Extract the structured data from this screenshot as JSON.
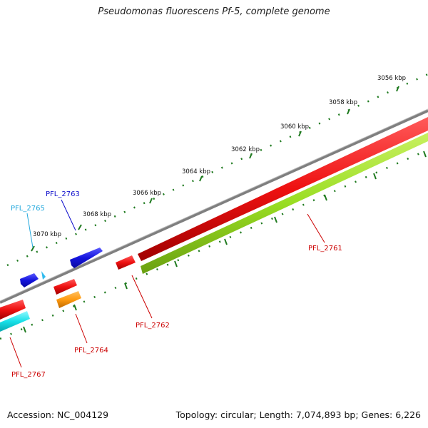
{
  "title": "Pseudomonas fluorescens Pf-5, complete genome",
  "accession": "Accession: NC_004129",
  "summary": "Topology: circular; Length: 7,074,893 bp; Genes: 6,226",
  "colors": {
    "backbone": "#7f7f7f",
    "forward_red": "#ee1111",
    "reverse_red": "#ee1111",
    "green_band": "#99dd22",
    "blue_gene": "#1414dd",
    "cyan_gene": "#18e0e8",
    "orange_gene": "#ff9a10",
    "label_red": "#cc0000",
    "label_blue": "#1010cc",
    "label_cyan": "#22a8dd",
    "tick_green": "#1f7a1f"
  },
  "ticks": [
    "3056 kbp",
    "3058 kbp",
    "3060 kbp",
    "3062 kbp",
    "3064 kbp",
    "3066 kbp",
    "3068 kbp",
    "3070 kbp"
  ],
  "genes": {
    "pfl_2761": "PFL_2761",
    "pfl_2762": "PFL_2762",
    "pfl_2763": "PFL_2763",
    "pfl_2764": "PFL_2764",
    "pfl_2765": "PFL_2765",
    "pfl_2767": "PFL_2767"
  }
}
